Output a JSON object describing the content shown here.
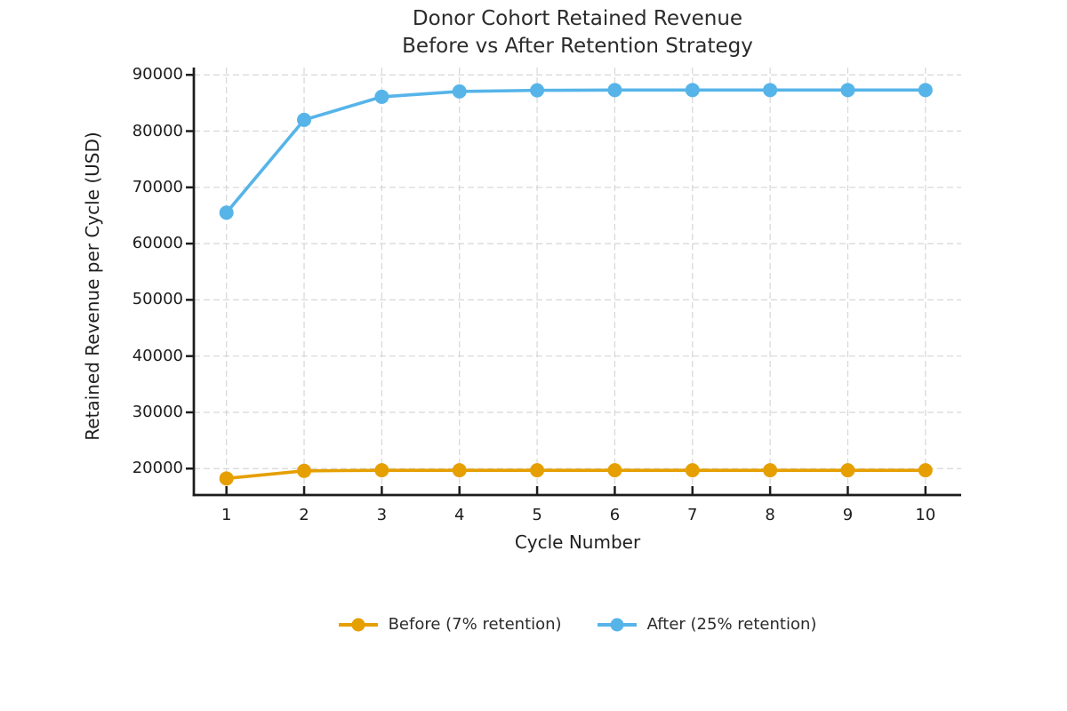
{
  "title": {
    "line1": "Donor Cohort Retained Revenue",
    "line2": "Before vs After Retention Strategy"
  },
  "chart_data": {
    "type": "line",
    "title": "Donor Cohort Retained Revenue\nBefore vs After Retention Strategy",
    "xlabel": "Cycle Number",
    "ylabel": "Retained Revenue per Cycle (USD)",
    "x": [
      1,
      2,
      3,
      4,
      5,
      6,
      7,
      8,
      9,
      10
    ],
    "series": [
      {
        "name": "Before (7% retention)",
        "color": "#E69F00",
        "values": [
          18250,
          19600,
          19700,
          19700,
          19700,
          19700,
          19700,
          19700,
          19700,
          19700
        ]
      },
      {
        "name": "After (25% retention)",
        "color": "#56B4E9",
        "values": [
          65500,
          82000,
          86100,
          87050,
          87250,
          87300,
          87300,
          87300,
          87300,
          87300
        ]
      }
    ],
    "x_ticks": [
      1,
      2,
      3,
      4,
      5,
      6,
      7,
      8,
      9,
      10
    ],
    "y_ticks": [
      20000,
      30000,
      40000,
      50000,
      60000,
      70000,
      80000,
      90000
    ],
    "xlim": [
      0.58,
      10.46
    ],
    "ylim": [
      15300,
      91300
    ],
    "grid": true,
    "grid_style": "dashed",
    "legend_position": "bottom-center",
    "marker": "circle"
  },
  "colors": {
    "background": "#ffffff",
    "text": "#2b2b2b",
    "axis": "#1c1c1c",
    "grid": "#c9c9c9",
    "before_series": "#E69F00",
    "after_series": "#56B4E9"
  }
}
